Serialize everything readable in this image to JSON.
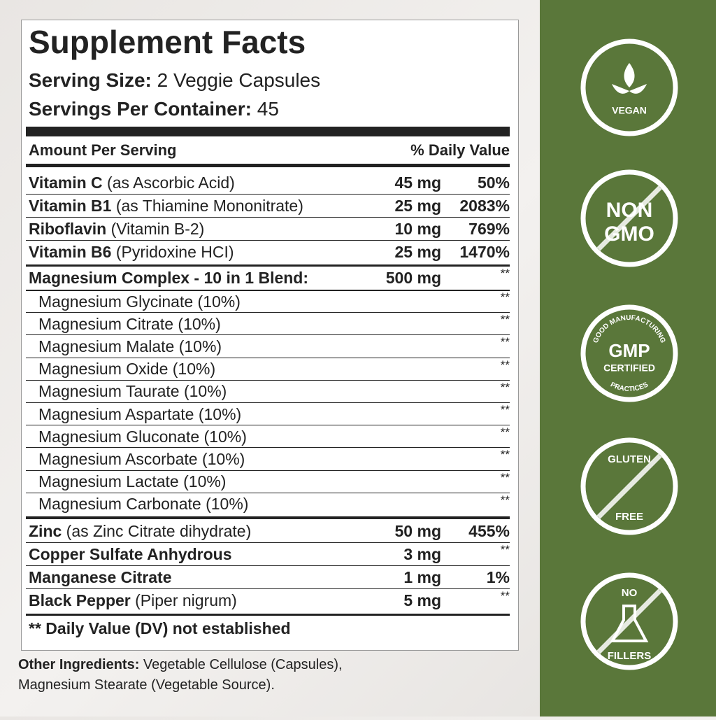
{
  "label": {
    "title": "Supplement Facts",
    "serving_size": {
      "label": "Serving Size:",
      "value": "2 Veggie Capsules"
    },
    "servings_per_container": {
      "label": "Servings Per Container:",
      "value": "45"
    },
    "header": {
      "amount": "Amount Per Serving",
      "dv": "% Daily Value"
    },
    "vitamins": [
      {
        "name": "Vitamin C",
        "detail": "(as Ascorbic Acid)",
        "amount": "45 mg",
        "dv": "50%"
      },
      {
        "name": "Vitamin B1",
        "detail": "(as Thiamine Mononitrate)",
        "amount": "25 mg",
        "dv": "2083%"
      },
      {
        "name": "Riboflavin",
        "detail": "(Vitamin B-2)",
        "amount": "10 mg",
        "dv": "769%"
      },
      {
        "name": "Vitamin B6",
        "detail": "(Pyridoxine HCI)",
        "amount": "25 mg",
        "dv": "1470%"
      }
    ],
    "blend": {
      "name": "Magnesium Complex - 10 in 1 Blend:",
      "amount": "500 mg",
      "dv": "**",
      "items": [
        {
          "name": "Magnesium Glycinate (10%)",
          "dv": "**"
        },
        {
          "name": "Magnesium Citrate (10%)",
          "dv": "**"
        },
        {
          "name": "Magnesium Malate (10%)",
          "dv": "**"
        },
        {
          "name": "Magnesium Oxide (10%)",
          "dv": "**"
        },
        {
          "name": "Magnesium Taurate (10%)",
          "dv": "**"
        },
        {
          "name": "Magnesium Aspartate (10%)",
          "dv": "**"
        },
        {
          "name": "Magnesium Gluconate (10%)",
          "dv": "**"
        },
        {
          "name": "Magnesium Ascorbate (10%)",
          "dv": "**"
        },
        {
          "name": "Magnesium Lactate (10%)",
          "dv": "**"
        },
        {
          "name": "Magnesium Carbonate (10%)",
          "dv": "**"
        }
      ]
    },
    "minerals": [
      {
        "name": "Zinc",
        "detail": "(as Zinc Citrate dihydrate)",
        "amount": "50 mg",
        "dv": "455%"
      },
      {
        "name": "Copper Sulfate Anhydrous",
        "amount": "3 mg",
        "dv": "**"
      },
      {
        "name": "Manganese Citrate",
        "amount": "1 mg",
        "dv": "1%"
      },
      {
        "name": "Black Pepper",
        "detail": "(Piper nigrum)",
        "amount": "5 mg",
        "dv": "**"
      }
    ],
    "footnote": "** Daily Value (DV) not established"
  },
  "other_ingredients": {
    "label": "Other Ingredients:",
    "lines": [
      "Vegetable Cellulose (Capsules),",
      "Magnesium Stearate (Vegetable Source)."
    ]
  },
  "badges": [
    {
      "lines": [
        "VEGAN"
      ]
    },
    {
      "lines": [
        "NON",
        "GMO"
      ]
    },
    {
      "arc_top": "GOOD MANUFACTURING",
      "lines": [
        "GMP",
        "CERTIFIED"
      ],
      "arc_bottom": "PRACTICES"
    },
    {
      "lines": [
        "GLUTEN",
        "FREE"
      ]
    },
    {
      "lines": [
        "NO",
        "FILLERS"
      ]
    }
  ]
}
